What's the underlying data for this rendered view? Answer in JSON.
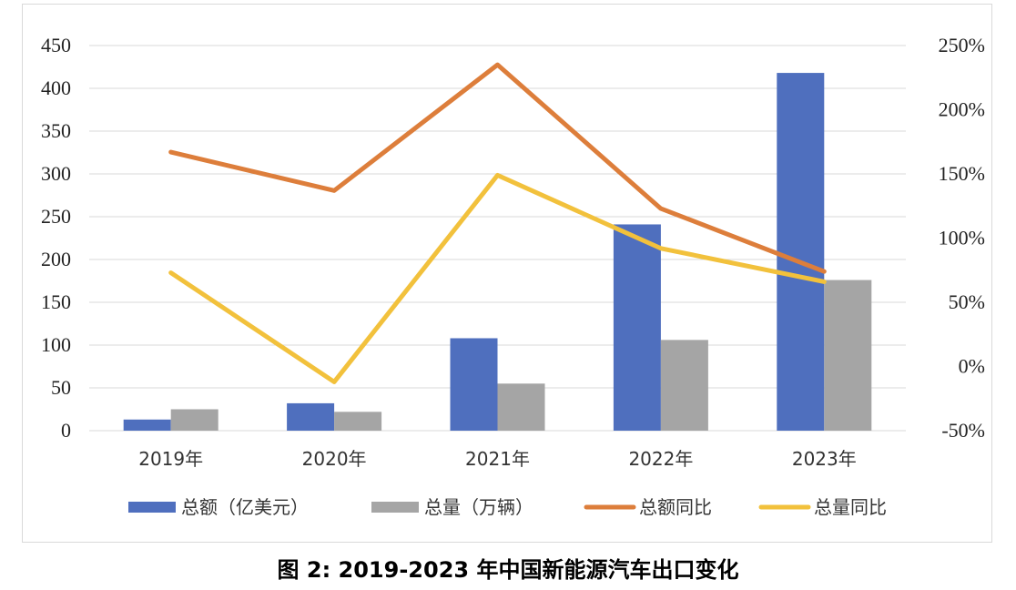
{
  "chart_data": {
    "type": "bar",
    "categories": [
      "2019年",
      "2020年",
      "2021年",
      "2022年",
      "2023年"
    ],
    "series": [
      {
        "name": "总额（亿美元）",
        "kind": "bar",
        "axis": "left",
        "color": "#4f6fbe",
        "values": [
          13,
          32,
          108,
          241,
          418
        ]
      },
      {
        "name": "总量（万辆）",
        "kind": "bar",
        "axis": "left",
        "color": "#a5a5a5",
        "values": [
          25,
          22,
          55,
          106,
          176
        ]
      },
      {
        "name": "总额同比",
        "kind": "line",
        "axis": "right",
        "color": "#dd7e3b",
        "values": [
          1.67,
          1.37,
          2.35,
          1.23,
          0.74
        ]
      },
      {
        "name": "总量同比",
        "kind": "line",
        "axis": "right",
        "color": "#f2c13c",
        "values": [
          0.73,
          -0.12,
          1.49,
          0.92,
          0.66
        ]
      }
    ],
    "y_left": {
      "range": [
        0,
        450
      ],
      "ticks": [
        "0",
        "50",
        "100",
        "150",
        "200",
        "250",
        "300",
        "350",
        "400",
        "450"
      ]
    },
    "y_right": {
      "range": [
        -0.5,
        2.5
      ],
      "ticks": [
        "-50%",
        "0%",
        "50%",
        "100%",
        "150%",
        "200%",
        "250%"
      ]
    },
    "grid": true,
    "legend_position": "bottom"
  },
  "caption": "图 2: 2019-2023 年中国新能源汽车出口变化"
}
